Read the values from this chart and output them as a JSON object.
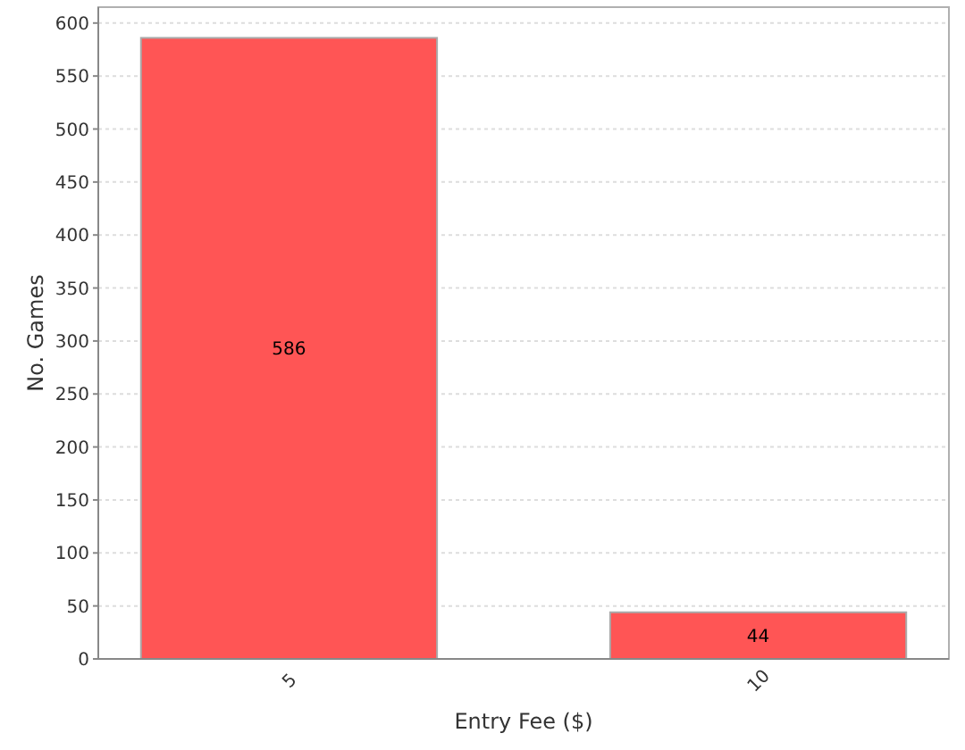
{
  "chart_data": {
    "type": "bar",
    "categories": [
      "5",
      "10"
    ],
    "values": [
      586,
      44
    ],
    "color": "#ff5555",
    "xlabel": "Entry Fee ($)",
    "ylabel": "No. Games",
    "ylim": [
      0,
      615
    ],
    "yticks": [
      0,
      50,
      100,
      150,
      200,
      250,
      300,
      350,
      400,
      450,
      500,
      550,
      600
    ],
    "grid": "y",
    "data_labels": true
  }
}
